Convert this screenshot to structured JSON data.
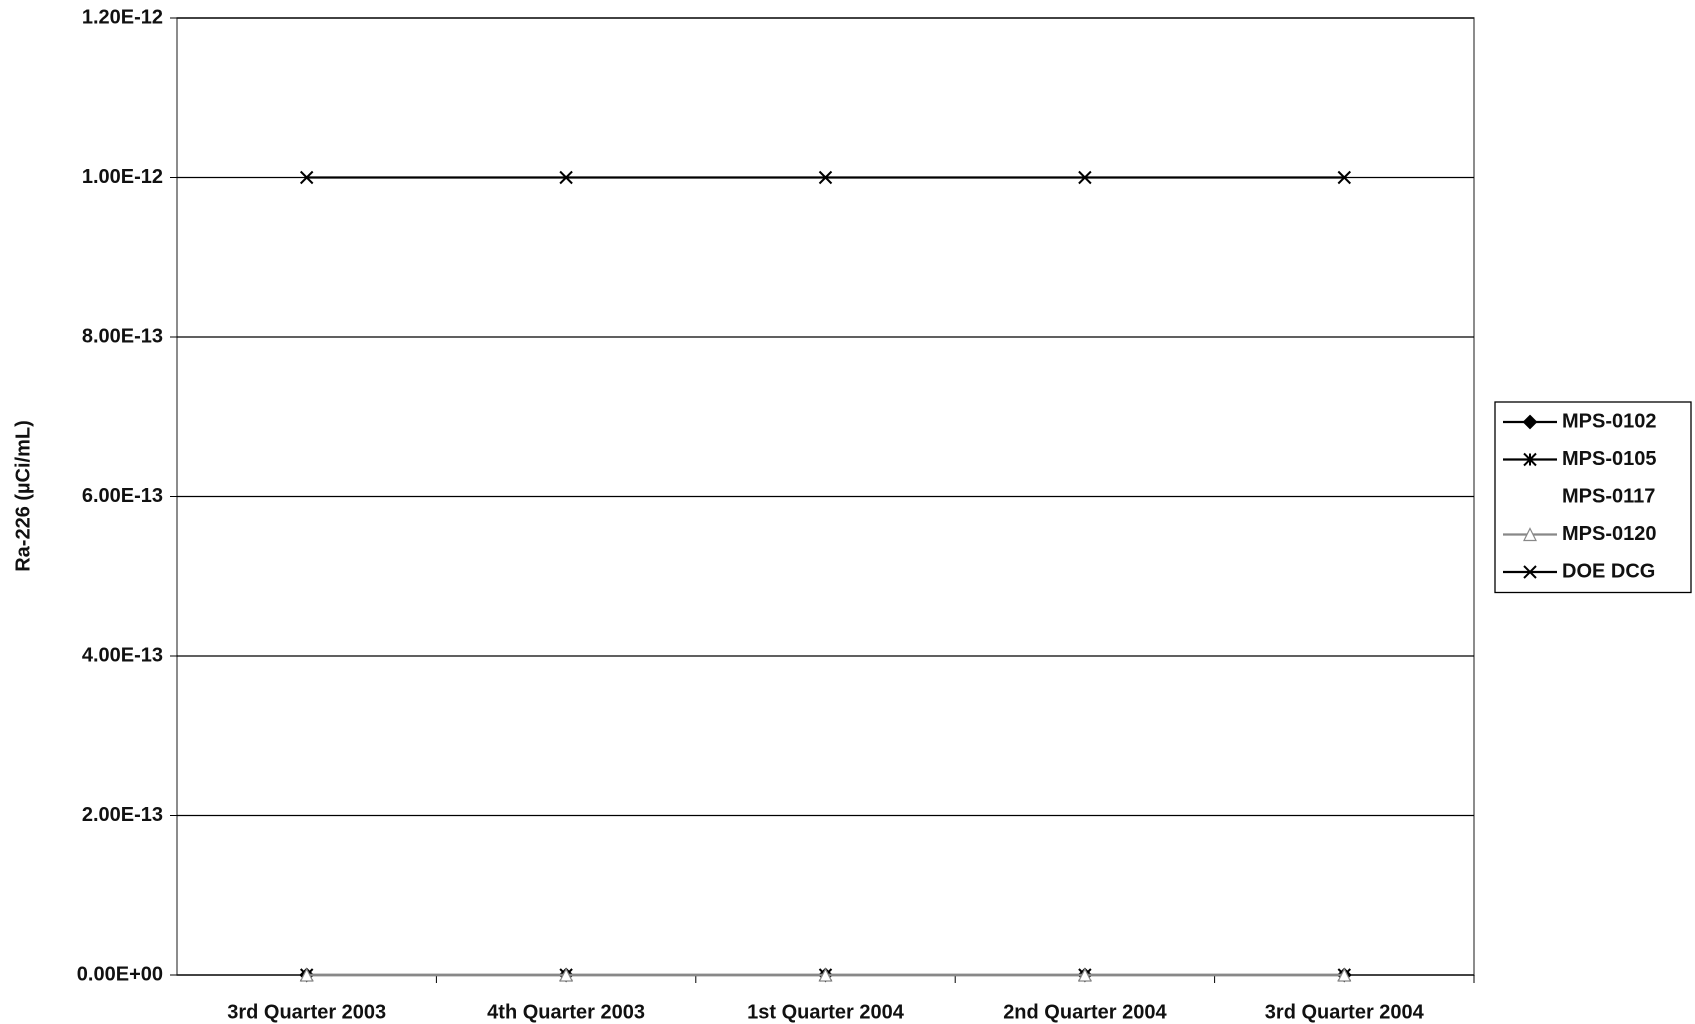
{
  "chart_data": {
    "type": "line",
    "y_label": "Ra-226 (µCi/mL)",
    "categories": [
      "3rd Quarter 2003",
      "4th Quarter 2003",
      "1st Quarter 2004",
      "2nd Quarter 2004",
      "3rd Quarter 2004"
    ],
    "series": [
      {
        "name": "MPS-0102",
        "color": "#000000",
        "marker": "diamond",
        "values": [
          0,
          0,
          0,
          0,
          0
        ]
      },
      {
        "name": "MPS-0105",
        "color": "#000000",
        "marker": "asterisk",
        "values": [
          0,
          0,
          0,
          0,
          0
        ]
      },
      {
        "name": "MPS-0117",
        "color": "#ffffff",
        "marker": "none",
        "values": [
          0,
          0,
          0,
          0,
          0
        ]
      },
      {
        "name": "MPS-0120",
        "color": "#888888",
        "marker": "triangle",
        "values": [
          0,
          0,
          0,
          0,
          0
        ]
      },
      {
        "name": "DOE DCG",
        "color": "#000000",
        "marker": "x",
        "values": [
          1e-12,
          1e-12,
          1e-12,
          1e-12,
          1e-12
        ]
      }
    ],
    "ylim": [
      0,
      1.2e-12
    ],
    "yticks": [
      {
        "value": 0,
        "label": "0.00E+00"
      },
      {
        "value": 2e-13,
        "label": "2.00E-13"
      },
      {
        "value": 4e-13,
        "label": "4.00E-13"
      },
      {
        "value": 6e-13,
        "label": "6.00E-13"
      },
      {
        "value": 8e-13,
        "label": "8.00E-13"
      },
      {
        "value": 1e-12,
        "label": "1.00E-12"
      },
      {
        "value": 1.2e-12,
        "label": "1.20E-12"
      }
    ],
    "grid": true,
    "legend": "right"
  }
}
